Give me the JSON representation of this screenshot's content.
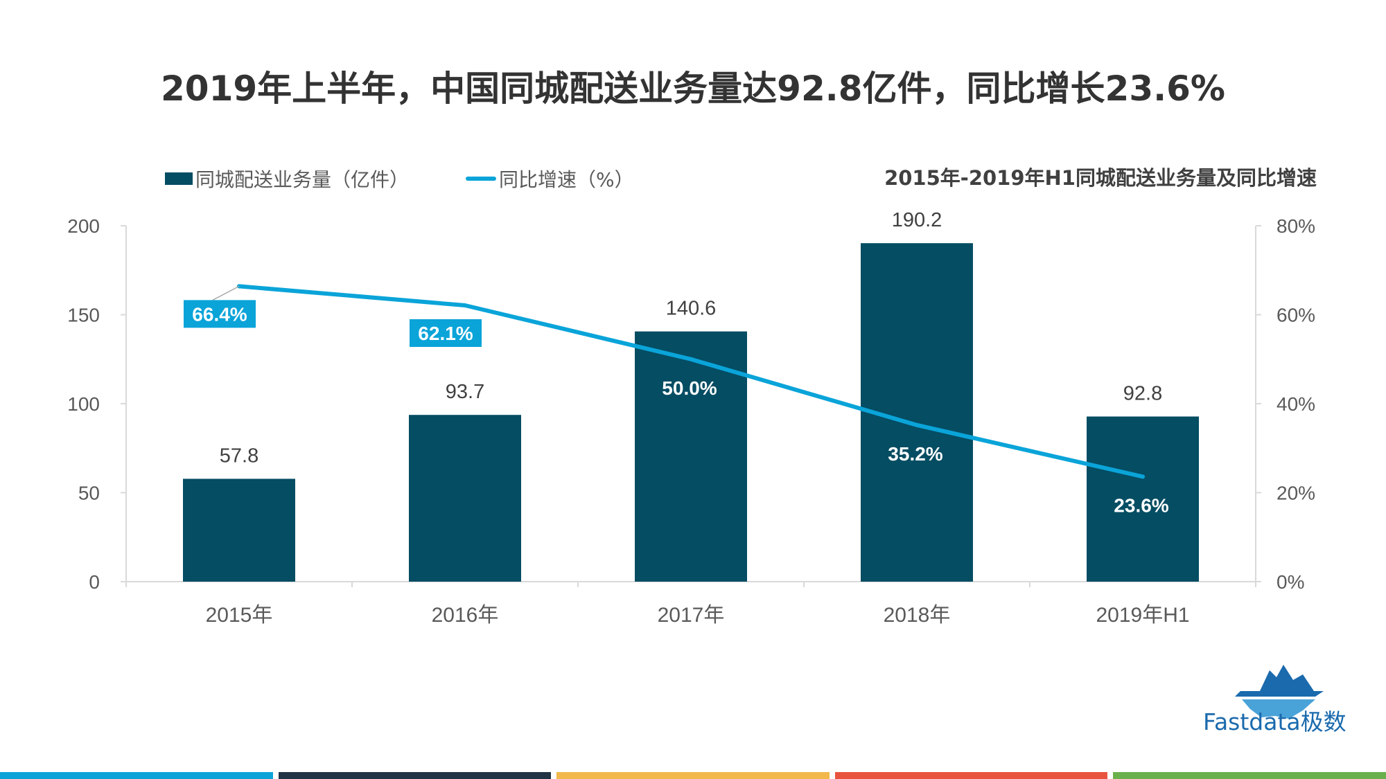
{
  "title": "2019年上半年，中国同城配送业务量达92.8亿件，同比增长23.6%",
  "subtitle": "2015年-2019年H1同城配送业务量及同比增速",
  "legend": {
    "bar_label": "同城配送业务量（亿件）",
    "line_label": "同比增速（%）"
  },
  "colors": {
    "bar": "#044d63",
    "line": "#0aa4d9",
    "text": "#595959",
    "axis": "#d9d9d9",
    "label_box": "#0aa4d9"
  },
  "logo": {
    "text": "Fastdata极数",
    "icon": "iceberg-icon"
  },
  "footer_colors": [
    "#0aa4d9",
    "#1f3344",
    "#f2b84b",
    "#e8533f",
    "#6ab04c"
  ],
  "chart_data": {
    "type": "bar",
    "title": "2015年-2019年H1同城配送业务量及同比增速",
    "categories": [
      "2015年",
      "2016年",
      "2017年",
      "2018年",
      "2019年H1"
    ],
    "series": [
      {
        "name": "同城配送业务量（亿件）",
        "type": "bar",
        "axis": "left",
        "values": [
          57.8,
          93.7,
          140.6,
          190.2,
          92.8
        ],
        "labels": [
          "57.8",
          "93.7",
          "140.6",
          "190.2",
          "92.8"
        ]
      },
      {
        "name": "同比增速（%）",
        "type": "line",
        "axis": "right",
        "values": [
          66.4,
          62.1,
          50.0,
          35.2,
          23.6
        ],
        "labels": [
          "66.4%",
          "62.1%",
          "50.0%",
          "35.2%",
          "23.6%"
        ]
      }
    ],
    "y_left": {
      "lim": [
        0,
        200
      ],
      "ticks": [
        0,
        50,
        100,
        150,
        200
      ],
      "tick_labels": [
        "0",
        "50",
        "100",
        "150",
        "200"
      ]
    },
    "y_right": {
      "lim": [
        0,
        80
      ],
      "ticks": [
        0,
        20,
        40,
        60,
        80
      ],
      "tick_labels": [
        "0%",
        "20%",
        "40%",
        "60%",
        "80%"
      ]
    },
    "legend_position": "top-left",
    "grid": false
  }
}
